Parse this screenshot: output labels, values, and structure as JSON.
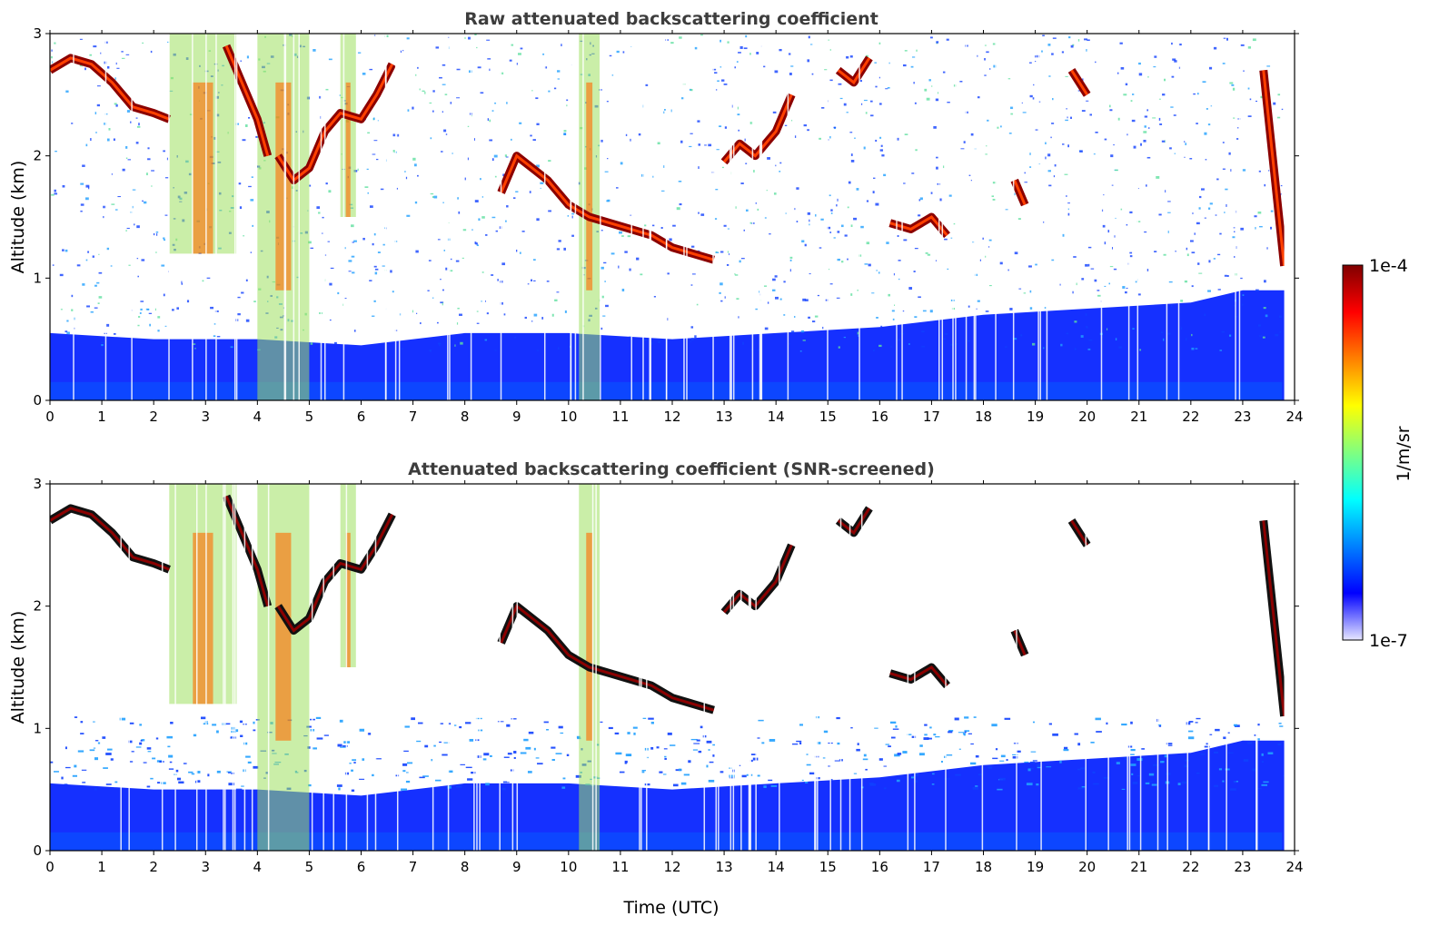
{
  "chart_data": [
    {
      "type": "heatmap",
      "title": "Raw attenuated backscattering coefficient",
      "ylabel": "Altitude (km)",
      "xlabel": "",
      "xlim": [
        0,
        24
      ],
      "ylim": [
        0,
        3
      ],
      "xticks": [
        "0",
        "1",
        "2",
        "3",
        "4",
        "5",
        "6",
        "7",
        "8",
        "9",
        "10",
        "11",
        "12",
        "13",
        "14",
        "15",
        "16",
        "17",
        "18",
        "19",
        "20",
        "21",
        "22",
        "23",
        "24"
      ],
      "yticks": [
        "0",
        "1",
        "2",
        "3"
      ],
      "screened": false
    },
    {
      "type": "heatmap",
      "title": "Attenuated backscattering coefficient (SNR-screened)",
      "ylabel": "Altitude (km)",
      "xlabel": "Time (UTC)",
      "xlim": [
        0,
        24
      ],
      "ylim": [
        0,
        3
      ],
      "xticks": [
        "0",
        "1",
        "2",
        "3",
        "4",
        "5",
        "6",
        "7",
        "8",
        "9",
        "10",
        "11",
        "12",
        "13",
        "14",
        "15",
        "16",
        "17",
        "18",
        "19",
        "20",
        "21",
        "22",
        "23",
        "24"
      ],
      "yticks": [
        "0",
        "1",
        "2",
        "3"
      ],
      "screened": true
    }
  ],
  "colorbar": {
    "label": "1/m/sr",
    "max_label": "1e-4",
    "min_label": "1e-7",
    "scale": "log",
    "colors": [
      "#e6e6ff",
      "#0000ff",
      "#0080ff",
      "#00ffff",
      "#80ff80",
      "#ffff00",
      "#ff8000",
      "#ff0000",
      "#800000"
    ]
  },
  "cloud_layers": [
    {
      "x": [
        0.0,
        0.4,
        0.8,
        1.2,
        1.6,
        2.0,
        2.3
      ],
      "y": [
        2.7,
        2.8,
        2.75,
        2.6,
        2.4,
        2.35,
        2.3
      ]
    },
    {
      "x": [
        3.4,
        3.6,
        3.8,
        4.0,
        4.2
      ],
      "y": [
        2.9,
        2.7,
        2.5,
        2.3,
        2.0
      ]
    },
    {
      "x": [
        4.4,
        4.7,
        5.0,
        5.3,
        5.6,
        6.0,
        6.3,
        6.6
      ],
      "y": [
        2.0,
        1.8,
        1.9,
        2.2,
        2.35,
        2.3,
        2.5,
        2.75
      ]
    },
    {
      "x": [
        8.7,
        9.0,
        9.3,
        9.6,
        10.0,
        10.4,
        10.8,
        11.2,
        11.6,
        12.0,
        12.4,
        12.8
      ],
      "y": [
        1.7,
        2.0,
        1.9,
        1.8,
        1.6,
        1.5,
        1.45,
        1.4,
        1.35,
        1.25,
        1.2,
        1.15
      ]
    },
    {
      "x": [
        13.0,
        13.3,
        13.6,
        14.0,
        14.3
      ],
      "y": [
        1.95,
        2.1,
        2.0,
        2.2,
        2.5
      ]
    },
    {
      "x": [
        15.2,
        15.5,
        15.8
      ],
      "y": [
        2.7,
        2.6,
        2.8
      ]
    },
    {
      "x": [
        16.2,
        16.6,
        17.0,
        17.3
      ],
      "y": [
        1.45,
        1.4,
        1.5,
        1.35
      ]
    },
    {
      "x": [
        18.6,
        18.8
      ],
      "y": [
        1.8,
        1.6
      ]
    },
    {
      "x": [
        19.7,
        20.0
      ],
      "y": [
        2.7,
        2.5
      ]
    },
    {
      "x": [
        23.4,
        23.8
      ],
      "y": [
        2.7,
        1.1
      ]
    }
  ],
  "boundary_layer": {
    "x": [
      0,
      2,
      4,
      6,
      8,
      10,
      12,
      14,
      16,
      18,
      20,
      22,
      23,
      24
    ],
    "y": [
      0.55,
      0.5,
      0.5,
      0.45,
      0.55,
      0.55,
      0.5,
      0.55,
      0.6,
      0.7,
      0.75,
      0.8,
      0.9,
      0.9
    ]
  }
}
